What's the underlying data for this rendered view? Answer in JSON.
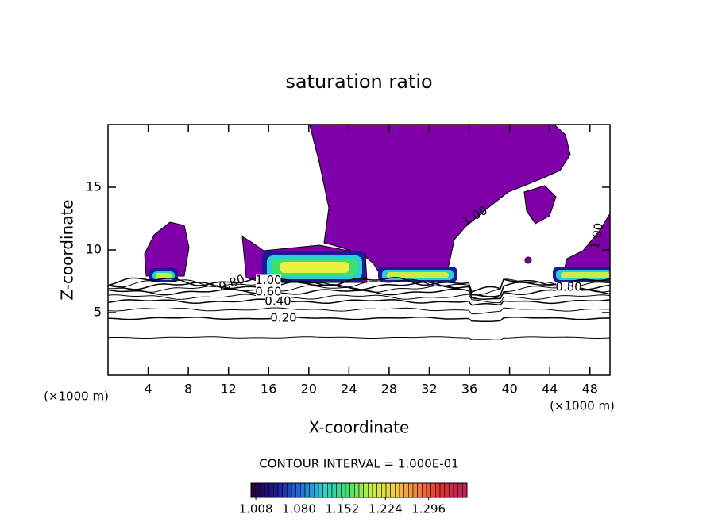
{
  "chart_data": {
    "type": "contour",
    "title": "saturation ratio",
    "x_label": "X-coordinate",
    "y_label": "Z-coordinate",
    "x_unit_left": "(×1000 m)",
    "x_unit_right": "(×1000 m)",
    "xlim": [
      0,
      50
    ],
    "ylim": [
      0,
      20
    ],
    "xticks": [
      4,
      8,
      12,
      16,
      20,
      24,
      28,
      32,
      36,
      40,
      44,
      48
    ],
    "yticks": [
      5,
      10,
      15
    ],
    "contour_interval_text": "CONTOUR INTERVAL = 1.000E-01",
    "contours": [
      {
        "level": 0.1,
        "z": 3.0
      },
      {
        "level": 0.2,
        "label": "0.20",
        "z": 4.55
      },
      {
        "level": 0.3,
        "z": 5.25
      },
      {
        "level": 0.4,
        "label": "0.40",
        "z": 5.9
      },
      {
        "level": 0.5,
        "z": 6.25
      },
      {
        "level": 0.6,
        "label": "0.60",
        "z": 6.65
      },
      {
        "level": 0.7,
        "z": 6.9
      },
      {
        "level": 0.8,
        "label": "0.80",
        "z": 7.15
      },
      {
        "level": 0.9,
        "z": 7.35
      },
      {
        "level": 1.0,
        "label": "1.00",
        "z": 7.5
      }
    ],
    "colorbar": {
      "range": [
        1.0,
        1.36
      ],
      "ticks": [
        {
          "value": 1.008,
          "label": "1.008"
        },
        {
          "value": 1.08,
          "label": "1.080"
        },
        {
          "value": 1.152,
          "label": "1.152"
        },
        {
          "value": 1.224,
          "label": "1.224"
        },
        {
          "value": 1.296,
          "label": "1.296"
        }
      ],
      "colors": [
        "#2a0040",
        "#1a1a9a",
        "#1f6fe0",
        "#2ad0d0",
        "#3ee070",
        "#c8f040",
        "#f0d040",
        "#f08040",
        "#e03030",
        "#c02060"
      ]
    },
    "region_color": "#7f00a8"
  }
}
